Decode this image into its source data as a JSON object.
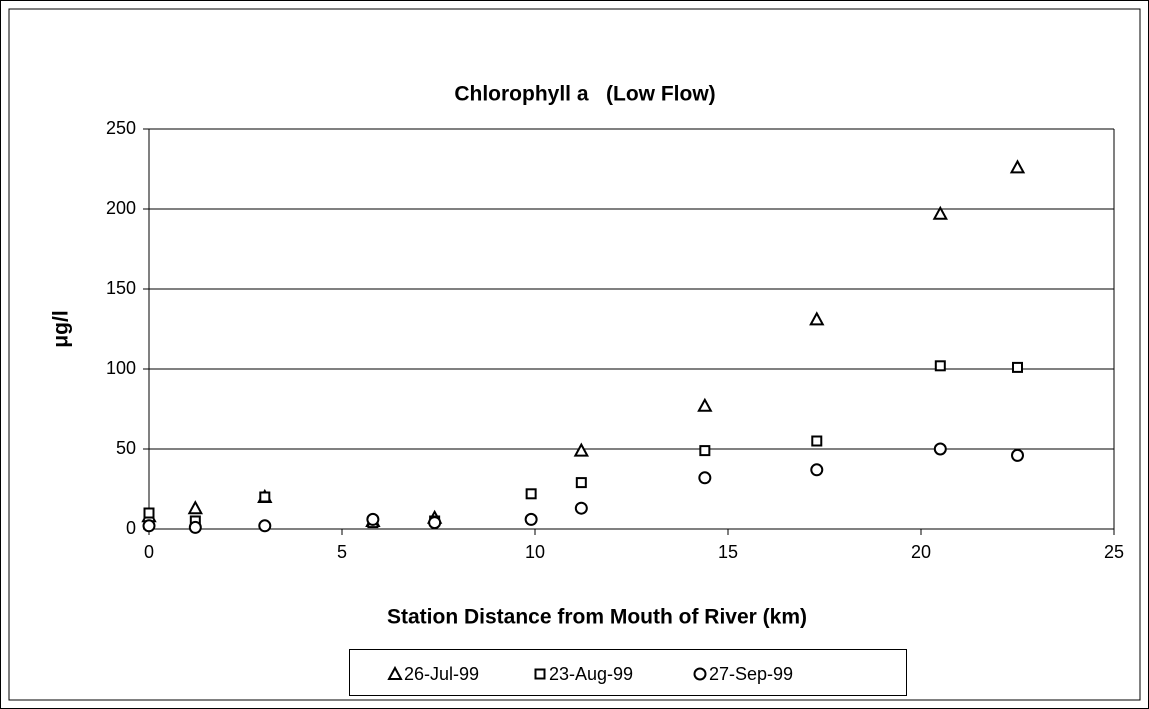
{
  "chart_data": {
    "type": "scatter",
    "title": "Chlorophyll a   (Low Flow)",
    "x_label": "Station Distance from Mouth of River (km)",
    "y_label": "μg/l",
    "x": [
      0,
      1.2,
      3,
      5.8,
      7.4,
      9.9,
      11.2,
      14.4,
      17.3,
      20.5,
      22.5
    ],
    "series": [
      {
        "name": "26-Jul-99",
        "color": "#000000",
        "marker": "triangle",
        "values": [
          8,
          13,
          20,
          5,
          7,
          null,
          49,
          77,
          131,
          197,
          226
        ]
      },
      {
        "name": "23-Aug-99",
        "color": "#000000",
        "marker": "square",
        "values": [
          10,
          5,
          20,
          4,
          5,
          22,
          29,
          49,
          55,
          102,
          101
        ]
      },
      {
        "name": "27-Sep-99",
        "color": "#000000",
        "marker": "circle",
        "values": [
          2,
          1,
          2,
          6,
          4,
          6,
          13,
          32,
          37,
          50,
          46
        ]
      }
    ],
    "xlim": [
      0,
      25
    ],
    "xticks": [
      0,
      5,
      10,
      15,
      20,
      25
    ],
    "ylim": [
      0,
      250
    ],
    "yticks": [
      0,
      50,
      100,
      150,
      200,
      250
    ],
    "grid": true,
    "legend": "bottom"
  }
}
